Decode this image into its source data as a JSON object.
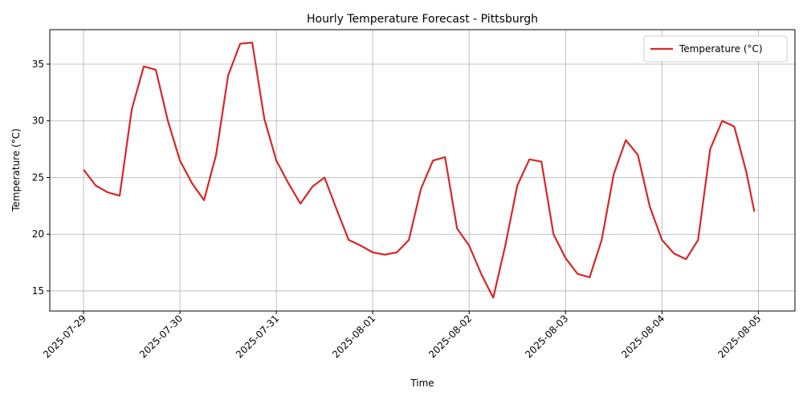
{
  "chart_data": {
    "type": "line",
    "title": "Hourly Temperature Forecast - Pittsburgh",
    "x_label": "Time",
    "y_label": "Temperature (°C)",
    "x": [
      "2025-07-29T00:00",
      "2025-07-29T03:00",
      "2025-07-29T06:00",
      "2025-07-29T09:00",
      "2025-07-29T12:00",
      "2025-07-29T15:00",
      "2025-07-29T18:00",
      "2025-07-29T21:00",
      "2025-07-30T00:00",
      "2025-07-30T03:00",
      "2025-07-30T06:00",
      "2025-07-30T09:00",
      "2025-07-30T12:00",
      "2025-07-30T15:00",
      "2025-07-30T18:00",
      "2025-07-30T21:00",
      "2025-07-31T00:00",
      "2025-07-31T03:00",
      "2025-07-31T06:00",
      "2025-07-31T09:00",
      "2025-07-31T12:00",
      "2025-07-31T15:00",
      "2025-07-31T18:00",
      "2025-07-31T21:00",
      "2025-08-01T00:00",
      "2025-08-01T03:00",
      "2025-08-01T06:00",
      "2025-08-01T09:00",
      "2025-08-01T12:00",
      "2025-08-01T15:00",
      "2025-08-01T18:00",
      "2025-08-01T21:00",
      "2025-08-02T00:00",
      "2025-08-02T03:00",
      "2025-08-02T06:00",
      "2025-08-02T09:00",
      "2025-08-02T12:00",
      "2025-08-02T15:00",
      "2025-08-02T18:00",
      "2025-08-02T21:00",
      "2025-08-03T00:00",
      "2025-08-03T03:00",
      "2025-08-03T06:00",
      "2025-08-03T09:00",
      "2025-08-03T12:00",
      "2025-08-03T15:00",
      "2025-08-03T18:00",
      "2025-08-03T21:00",
      "2025-08-04T00:00",
      "2025-08-04T03:00",
      "2025-08-04T06:00",
      "2025-08-04T09:00",
      "2025-08-04T12:00",
      "2025-08-04T15:00",
      "2025-08-04T18:00",
      "2025-08-04T21:00",
      "2025-08-04T23:00"
    ],
    "series": [
      {
        "name": "Temperature (°C)",
        "color": "#d62728",
        "values": [
          25.7,
          24.3,
          23.7,
          23.4,
          31,
          34.8,
          34.5,
          30,
          26.5,
          24.5,
          23,
          27,
          34,
          36.8,
          36.9,
          30.2,
          26.5,
          24.5,
          22.7,
          24.2,
          25,
          22.2,
          19.5,
          19,
          18.4,
          18.2,
          18.4,
          19.5,
          24,
          26.5,
          26.8,
          20.5,
          19,
          16.5,
          14.4,
          19,
          24.3,
          26.6,
          26.4,
          20,
          17.9,
          16.5,
          16.2,
          19.5,
          25.3,
          28.3,
          27,
          22.4,
          19.5,
          18.3,
          17.8,
          19.5,
          27.5,
          30,
          29.5,
          25.5,
          22
        ]
      }
    ],
    "xlim": [
      "2025-07-28T15:36",
      "2025-08-05T09:07"
    ],
    "xticks": [
      "2025-07-29",
      "2025-07-30",
      "2025-07-31",
      "2025-08-01",
      "2025-08-02",
      "2025-08-03",
      "2025-08-04",
      "2025-08-05"
    ],
    "ylim": [
      13.23,
      38.04
    ],
    "yticks": [
      15,
      20,
      25,
      30,
      35
    ],
    "grid": true,
    "legend": "upper right"
  }
}
